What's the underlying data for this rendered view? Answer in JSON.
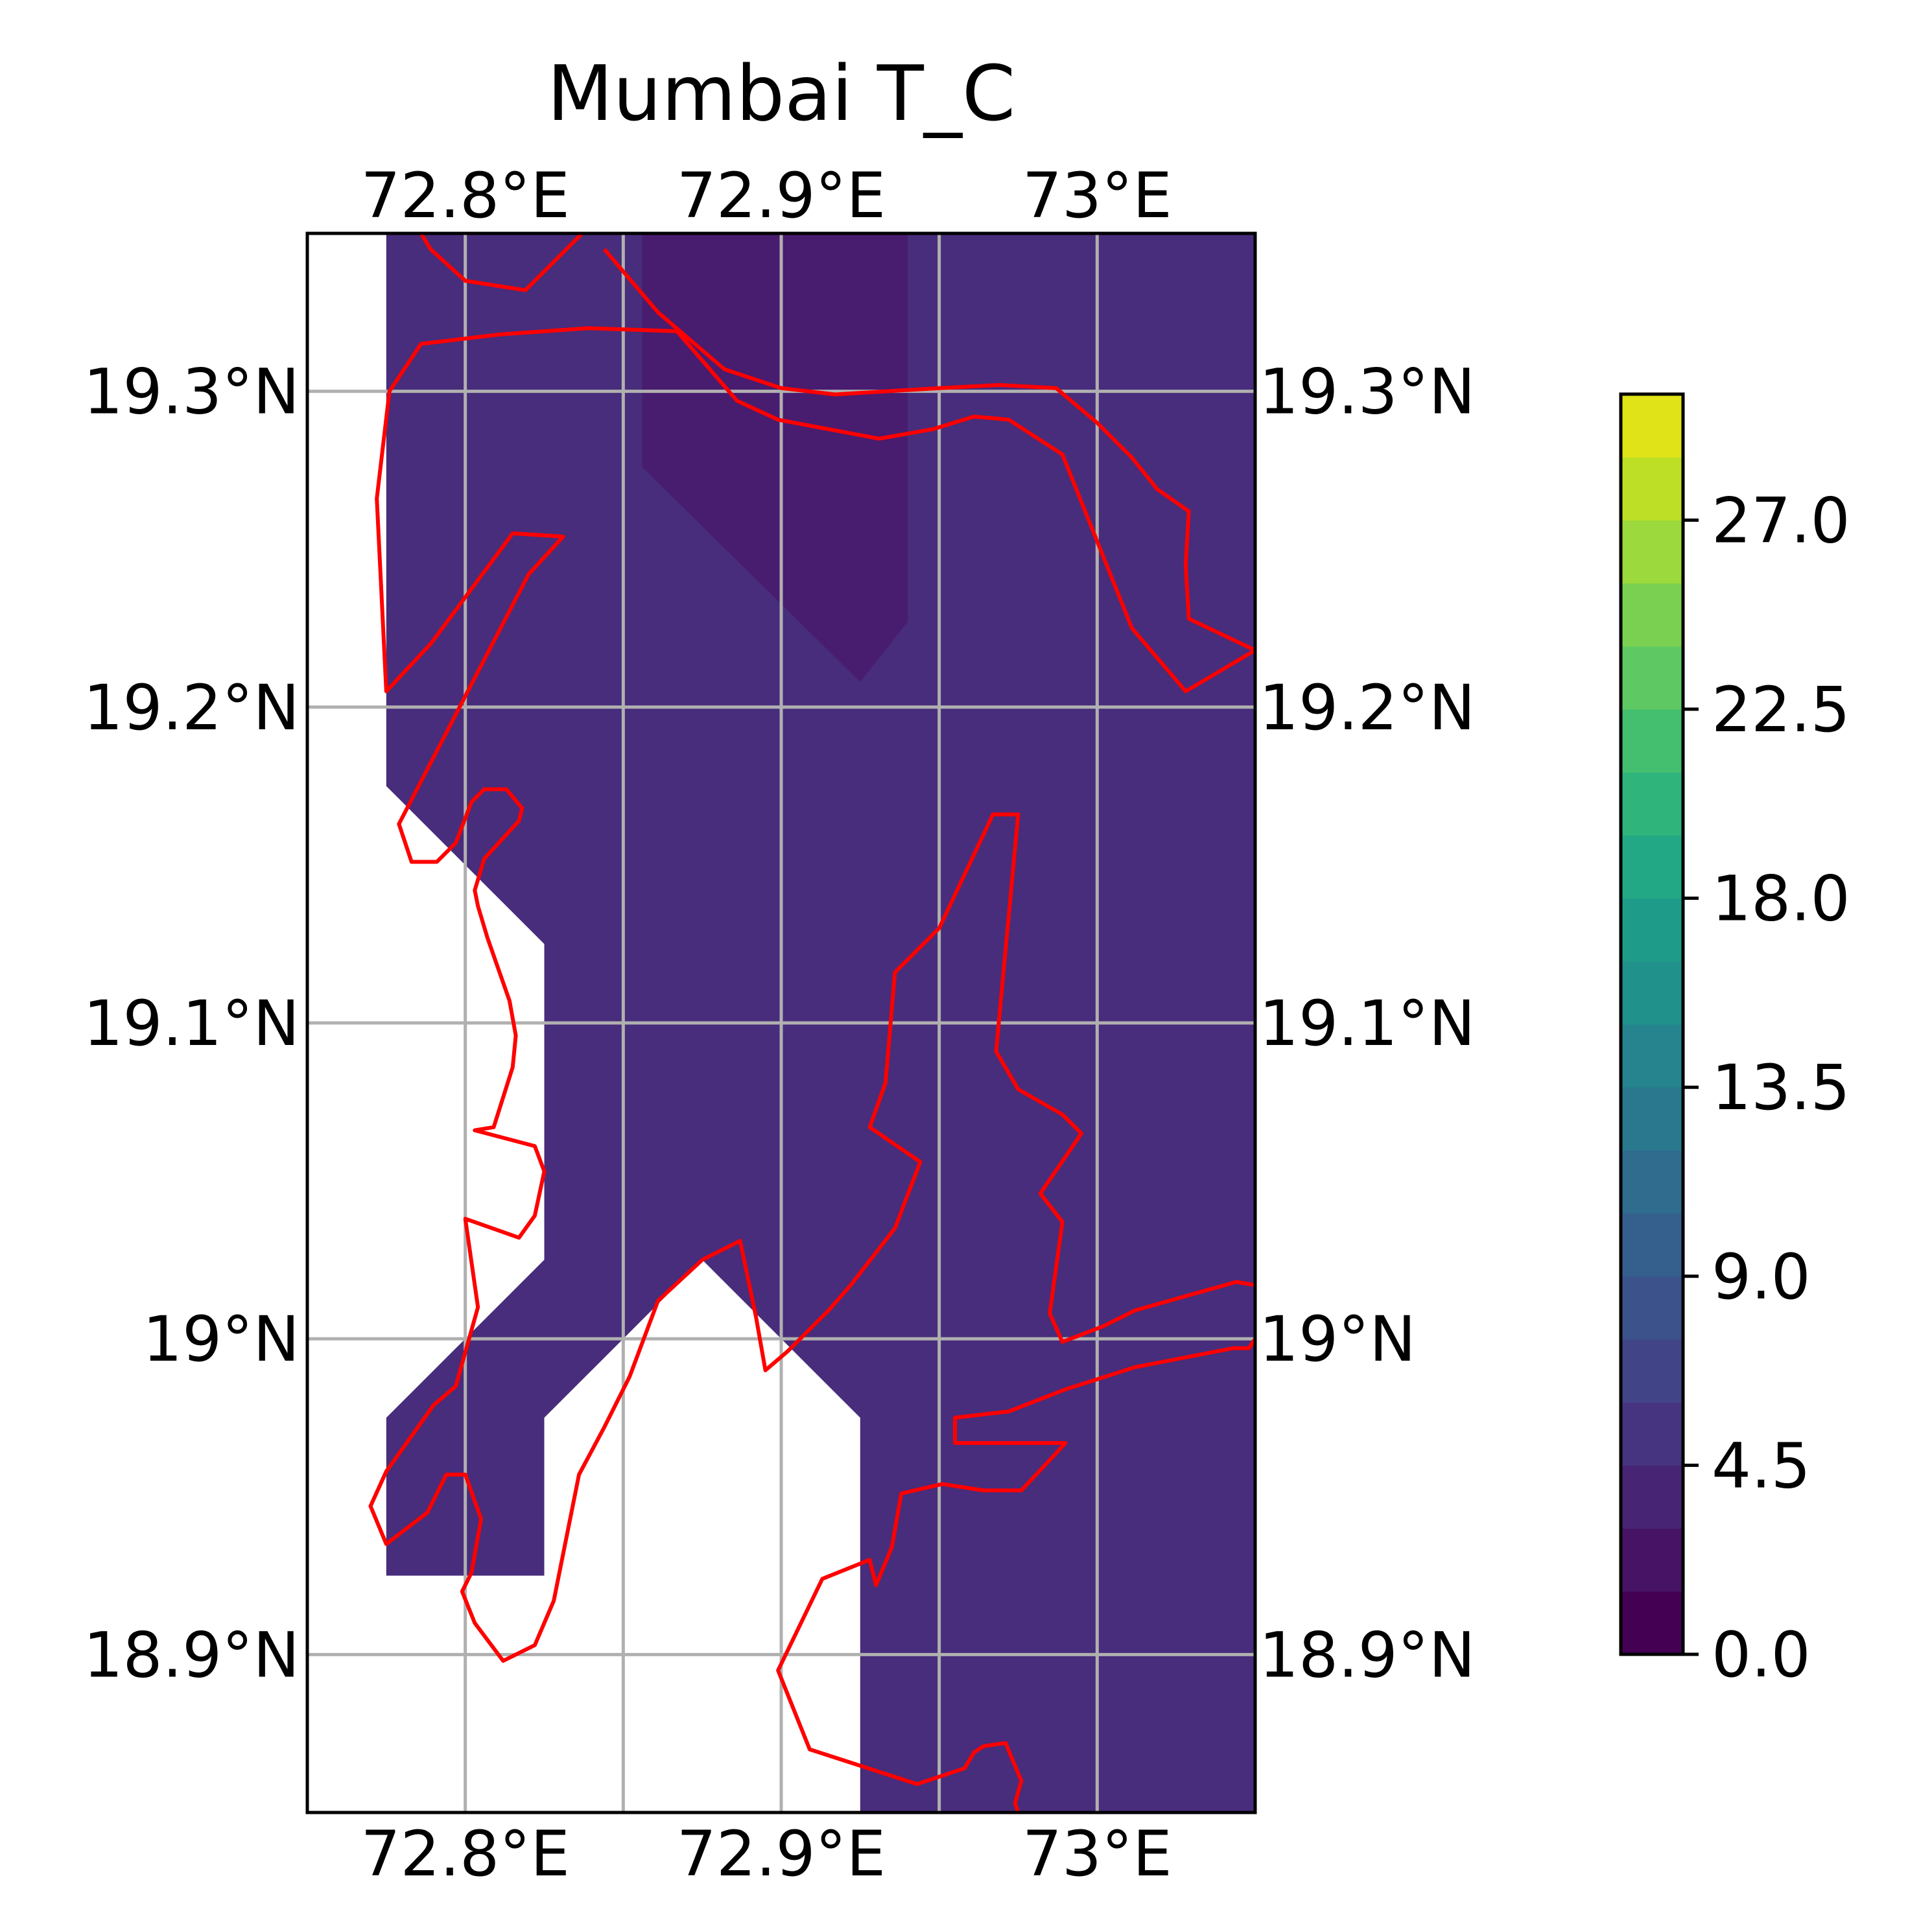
{
  "title": "Mumbai T_C",
  "map": {
    "lon_range": [
      72.75,
      73.05
    ],
    "lat_range": [
      18.85,
      19.35
    ],
    "lon_ticks": [
      72.8,
      72.85,
      72.9,
      72.95,
      73.0
    ],
    "lat_ticks": [
      18.9,
      19.0,
      19.1,
      19.2,
      19.3
    ],
    "lon_tick_labels": [
      {
        "lon": 72.8,
        "label": "72.8°E"
      },
      {
        "lon": 72.9,
        "label": "72.9°E"
      },
      {
        "lon": 73.0,
        "label": "73°E"
      }
    ],
    "lat_tick_labels": [
      {
        "lat": 18.9,
        "label": "18.9°N"
      },
      {
        "lat": 19.0,
        "label": "19°N"
      },
      {
        "lat": 19.1,
        "label": "19.1°N"
      },
      {
        "lat": 19.2,
        "label": "19.2°N"
      },
      {
        "lat": 19.3,
        "label": "19.3°N"
      }
    ],
    "field_color": "#472d7b",
    "field_peak_color": "#481c6e",
    "gridline_color": "#b0b0b0",
    "coastline_color": "#ff0000",
    "field_region": [
      [
        72.775,
        19.35
      ],
      [
        73.05,
        19.35
      ],
      [
        73.05,
        18.85
      ],
      [
        72.925,
        18.85
      ],
      [
        72.925,
        18.975
      ],
      [
        72.875,
        19.025
      ],
      [
        72.85,
        19.0
      ],
      [
        72.825,
        18.975
      ],
      [
        72.825,
        18.925
      ],
      [
        72.775,
        18.925
      ],
      [
        72.775,
        18.975
      ],
      [
        72.825,
        19.025
      ],
      [
        72.825,
        19.125
      ],
      [
        72.775,
        19.175
      ]
    ],
    "field_peak_region": [
      [
        72.856,
        19.35
      ],
      [
        72.94,
        19.35
      ],
      [
        72.94,
        19.227
      ],
      [
        72.925,
        19.208
      ],
      [
        72.856,
        19.276
      ]
    ],
    "coastlines": [
      [
        [
          72.786,
          19.35
        ],
        [
          72.789,
          19.345
        ],
        [
          72.8,
          19.335
        ],
        [
          72.819,
          19.332
        ],
        [
          72.837,
          19.35
        ]
      ],
      [
        [
          72.844,
          19.345
        ],
        [
          72.861,
          19.325
        ],
        [
          72.882,
          19.307
        ],
        [
          72.9,
          19.301
        ],
        [
          72.917,
          19.299
        ],
        [
          72.95,
          19.301
        ],
        [
          72.969,
          19.302
        ],
        [
          72.987,
          19.301
        ],
        [
          73.0,
          19.29
        ],
        [
          73.011,
          19.279
        ],
        [
          73.019,
          19.269
        ],
        [
          73.029,
          19.262
        ],
        [
          73.028,
          19.245
        ],
        [
          73.029,
          19.228
        ],
        [
          73.05,
          19.218
        ],
        [
          73.028,
          19.205
        ],
        [
          73.011,
          19.225
        ],
        [
          72.989,
          19.28
        ],
        [
          72.972,
          19.291
        ],
        [
          72.961,
          19.292
        ],
        [
          72.948,
          19.288
        ],
        [
          72.931,
          19.285
        ],
        [
          72.915,
          19.288
        ],
        [
          72.899,
          19.291
        ],
        [
          72.886,
          19.297
        ],
        [
          72.867,
          19.319
        ],
        [
          72.839,
          19.32
        ],
        [
          72.811,
          19.318
        ],
        [
          72.786,
          19.315
        ],
        [
          72.776,
          19.3
        ],
        [
          72.772,
          19.266
        ],
        [
          72.775,
          19.205
        ],
        [
          72.789,
          19.22
        ],
        [
          72.815,
          19.255
        ],
        [
          72.831,
          19.254
        ],
        [
          72.82,
          19.242
        ],
        [
          72.779,
          19.163
        ],
        [
          72.783,
          19.151
        ],
        [
          72.791,
          19.151
        ],
        [
          72.797,
          19.157
        ],
        [
          72.802,
          19.17
        ],
        [
          72.806,
          19.174
        ],
        [
          72.813,
          19.174
        ],
        [
          72.818,
          19.168
        ],
        [
          72.817,
          19.164
        ],
        [
          72.806,
          19.152
        ],
        [
          72.803,
          19.142
        ],
        [
          72.804,
          19.137
        ],
        [
          72.807,
          19.127
        ],
        [
          72.814,
          19.107
        ],
        [
          72.816,
          19.096
        ],
        [
          72.815,
          19.086
        ],
        [
          72.809,
          19.067
        ],
        [
          72.803,
          19.066
        ],
        [
          72.822,
          19.061
        ],
        [
          72.825,
          19.053
        ],
        [
          72.822,
          19.039
        ],
        [
          72.817,
          19.032
        ],
        [
          72.8,
          19.038
        ],
        [
          72.804,
          19.01
        ],
        [
          72.797,
          18.985
        ],
        [
          72.79,
          18.979
        ],
        [
          72.775,
          18.958
        ],
        [
          72.77,
          18.947
        ],
        [
          72.775,
          18.935
        ],
        [
          72.788,
          18.945
        ],
        [
          72.794,
          18.957
        ],
        [
          72.8,
          18.957
        ],
        [
          72.805,
          18.943
        ],
        [
          72.802,
          18.926
        ],
        [
          72.799,
          18.92
        ],
        [
          72.803,
          18.91
        ],
        [
          72.812,
          18.898
        ],
        [
          72.822,
          18.903
        ],
        [
          72.828,
          18.917
        ],
        [
          72.836,
          18.957
        ],
        [
          72.844,
          18.972
        ],
        [
          72.852,
          18.988
        ],
        [
          72.861,
          19.012
        ],
        [
          72.875,
          19.025
        ],
        [
          72.887,
          19.031
        ],
        [
          72.892,
          19.007
        ],
        [
          72.895,
          18.99
        ],
        [
          72.902,
          18.996
        ],
        [
          72.915,
          19.009
        ],
        [
          72.922,
          19.017
        ],
        [
          72.936,
          19.035
        ],
        [
          72.944,
          19.056
        ],
        [
          72.928,
          19.067
        ],
        [
          72.933,
          19.081
        ],
        [
          72.936,
          19.116
        ],
        [
          72.95,
          19.13
        ],
        [
          72.967,
          19.166
        ],
        [
          72.975,
          19.166
        ],
        [
          72.968,
          19.091
        ],
        [
          72.975,
          19.079
        ],
        [
          72.989,
          19.071
        ],
        [
          72.995,
          19.065
        ],
        [
          72.982,
          19.046
        ],
        [
          72.989,
          19.037
        ],
        [
          72.985,
          19.008
        ],
        [
          72.989,
          18.999
        ],
        [
          73.002,
          19.004
        ],
        [
          73.012,
          19.009
        ],
        [
          73.044,
          19.018
        ],
        [
          73.05,
          19.017
        ]
      ],
      [
        [
          73.05,
          19.0
        ],
        [
          73.048,
          18.997
        ],
        [
          73.043,
          18.997
        ],
        [
          73.012,
          18.991
        ],
        [
          72.99,
          18.984
        ],
        [
          72.972,
          18.977
        ],
        [
          72.955,
          18.975
        ],
        [
          72.955,
          18.967
        ],
        [
          72.99,
          18.967
        ],
        [
          72.976,
          18.952
        ],
        [
          72.964,
          18.952
        ],
        [
          72.951,
          18.954
        ],
        [
          72.938,
          18.951
        ],
        [
          72.935,
          18.934
        ],
        [
          72.93,
          18.922
        ],
        [
          72.928,
          18.93
        ],
        [
          72.913,
          18.924
        ],
        [
          72.899,
          18.895
        ],
        [
          72.909,
          18.87
        ],
        [
          72.943,
          18.859
        ],
        [
          72.958,
          18.864
        ],
        [
          72.961,
          18.869
        ],
        [
          72.964,
          18.871
        ],
        [
          72.971,
          18.872
        ],
        [
          72.976,
          18.86
        ],
        [
          72.974,
          18.853
        ],
        [
          72.975,
          18.85
        ]
      ]
    ]
  },
  "colorbar": {
    "colors": [
      "#440154",
      "#471365",
      "#482475",
      "#463480",
      "#414487",
      "#3b528b",
      "#355f8d",
      "#2f6c8e",
      "#2a788e",
      "#25848e",
      "#21918c",
      "#1e9c89",
      "#22a884",
      "#2fb47c",
      "#44bf70",
      "#5ec962",
      "#7ad151",
      "#9bd93c",
      "#bddf26",
      "#dfe318"
    ],
    "min": 0.0,
    "max": 30.0,
    "ticks": [
      {
        "value": 0.0,
        "label": "0.0"
      },
      {
        "value": 4.5,
        "label": "4.5"
      },
      {
        "value": 9.0,
        "label": "9.0"
      },
      {
        "value": 13.5,
        "label": "13.5"
      },
      {
        "value": 18.0,
        "label": "18.0"
      },
      {
        "value": 22.5,
        "label": "22.5"
      },
      {
        "value": 27.0,
        "label": "27.0"
      }
    ]
  }
}
